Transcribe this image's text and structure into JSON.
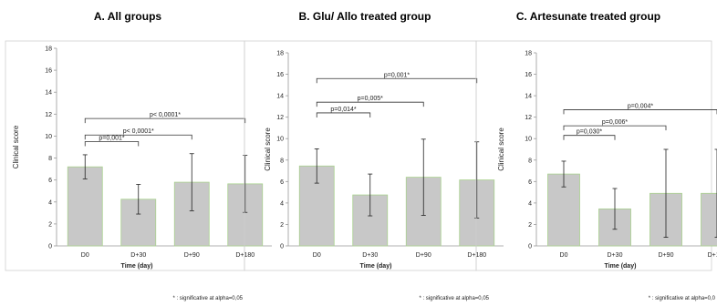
{
  "chart_data": [
    {
      "type": "bar",
      "title": "A. All groups",
      "categories": [
        "D0",
        "D+30",
        "D+90",
        "D+180"
      ],
      "values": [
        7.2,
        4.25,
        5.8,
        5.65
      ],
      "error": [
        1.1,
        1.35,
        2.6,
        2.6
      ],
      "xlabel": "Time (day)",
      "ylabel": "Clinical score",
      "ylim": [
        0,
        18
      ],
      "yticks": [
        0,
        2,
        4,
        6,
        8,
        10,
        12,
        14,
        16,
        18
      ],
      "bar_color": "#c8c8c8",
      "bar_edge_color": "#a9d18e",
      "comparisons": [
        {
          "from": 0,
          "to": 1,
          "label": "p=0,001*",
          "y": 9.5
        },
        {
          "from": 0,
          "to": 2,
          "label": "p< 0,0001*",
          "y": 10.1
        },
        {
          "from": 0,
          "to": 3,
          "label": "p< 0,0001*",
          "y": 11.6
        }
      ],
      "footnote": "* : significative at alpha=0,05"
    },
    {
      "type": "bar",
      "title": "B. Glu/ Allo treated group",
      "categories": [
        "D0",
        "D+30",
        "D+90",
        "D+180"
      ],
      "values": [
        7.45,
        4.75,
        6.4,
        6.15
      ],
      "error": [
        1.6,
        1.95,
        3.55,
        3.55
      ],
      "xlabel": "Time (day)",
      "ylabel": "Clinical score",
      "ylim": [
        0,
        18
      ],
      "yticks": [
        0,
        2,
        4,
        6,
        8,
        10,
        12,
        14,
        16,
        18
      ],
      "bar_color": "#c8c8c8",
      "bar_edge_color": "#a9d18e",
      "comparisons": [
        {
          "from": 0,
          "to": 1,
          "label": "p=0,014*",
          "y": 12.4
        },
        {
          "from": 0,
          "to": 2,
          "label": "p=0,005*",
          "y": 13.4
        },
        {
          "from": 0,
          "to": 3,
          "label": "p=0,001*",
          "y": 15.6
        }
      ],
      "footnote": "* : significative at alpha=0,05"
    },
    {
      "type": "bar",
      "title": "C. Artesunate treated group",
      "categories": [
        "D0",
        "D+30",
        "D+90",
        "D+180"
      ],
      "values": [
        6.7,
        3.45,
        4.9,
        4.9
      ],
      "error": [
        1.2,
        1.9,
        4.1,
        4.1
      ],
      "xlabel": "Time (day)",
      "ylabel": "Clinical score",
      "ylim": [
        0,
        18
      ],
      "yticks": [
        0,
        2,
        4,
        6,
        8,
        10,
        12,
        14,
        16,
        18
      ],
      "bar_color": "#c8c8c8",
      "bar_edge_color": "#a9d18e",
      "comparisons": [
        {
          "from": 0,
          "to": 1,
          "label": "p=0,030*",
          "y": 10.3
        },
        {
          "from": 0,
          "to": 2,
          "label": "p=0,006*",
          "y": 11.2
        },
        {
          "from": 0,
          "to": 3,
          "label": "p=0,004*",
          "y": 12.7
        }
      ],
      "footnote": "* : significative at alpha=0,0"
    }
  ]
}
